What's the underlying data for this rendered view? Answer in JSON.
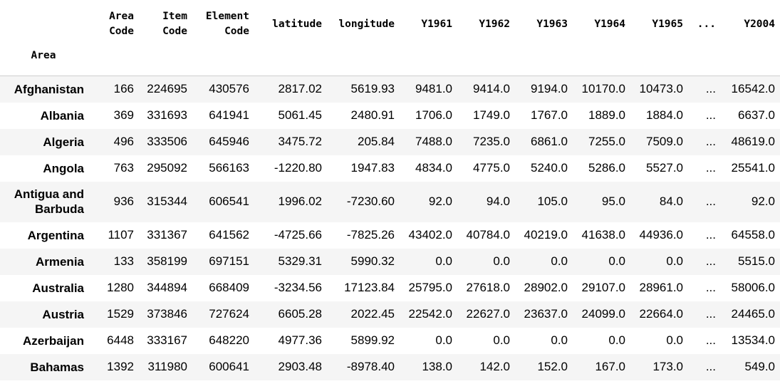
{
  "table": {
    "index_name": "Area",
    "columns": [
      [
        "Area",
        "Code"
      ],
      [
        "Item",
        "Code"
      ],
      [
        "Element",
        "Code"
      ],
      [
        "latitude"
      ],
      [
        "longitude"
      ],
      [
        "Y1961"
      ],
      [
        "Y1962"
      ],
      [
        "Y1963"
      ],
      [
        "Y1964"
      ],
      [
        "Y1965"
      ],
      [
        "..."
      ],
      [
        "Y2004"
      ]
    ],
    "rows": [
      {
        "area": [
          "Afghanistan"
        ],
        "cells": [
          "166",
          "224695",
          "430576",
          "2817.02",
          "5619.93",
          "9481.0",
          "9414.0",
          "9194.0",
          "10170.0",
          "10473.0",
          "...",
          "16542.0"
        ]
      },
      {
        "area": [
          "Albania"
        ],
        "cells": [
          "369",
          "331693",
          "641941",
          "5061.45",
          "2480.91",
          "1706.0",
          "1749.0",
          "1767.0",
          "1889.0",
          "1884.0",
          "...",
          "6637.0"
        ]
      },
      {
        "area": [
          "Algeria"
        ],
        "cells": [
          "496",
          "333506",
          "645946",
          "3475.72",
          "205.84",
          "7488.0",
          "7235.0",
          "6861.0",
          "7255.0",
          "7509.0",
          "...",
          "48619.0"
        ]
      },
      {
        "area": [
          "Angola"
        ],
        "cells": [
          "763",
          "295092",
          "566163",
          "-1220.80",
          "1947.83",
          "4834.0",
          "4775.0",
          "5240.0",
          "5286.0",
          "5527.0",
          "...",
          "25541.0"
        ]
      },
      {
        "area": [
          "Antigua and",
          "Barbuda"
        ],
        "cells": [
          "936",
          "315344",
          "606541",
          "1996.02",
          "-7230.60",
          "92.0",
          "94.0",
          "105.0",
          "95.0",
          "84.0",
          "...",
          "92.0"
        ]
      },
      {
        "area": [
          "Argentina"
        ],
        "cells": [
          "1107",
          "331367",
          "641562",
          "-4725.66",
          "-7825.26",
          "43402.0",
          "40784.0",
          "40219.0",
          "41638.0",
          "44936.0",
          "...",
          "64558.0"
        ]
      },
      {
        "area": [
          "Armenia"
        ],
        "cells": [
          "133",
          "358199",
          "697151",
          "5329.31",
          "5990.32",
          "0.0",
          "0.0",
          "0.0",
          "0.0",
          "0.0",
          "...",
          "5515.0"
        ]
      },
      {
        "area": [
          "Australia"
        ],
        "cells": [
          "1280",
          "344894",
          "668409",
          "-3234.56",
          "17123.84",
          "25795.0",
          "27618.0",
          "28902.0",
          "29107.0",
          "28961.0",
          "...",
          "58006.0"
        ]
      },
      {
        "area": [
          "Austria"
        ],
        "cells": [
          "1529",
          "373846",
          "727624",
          "6605.28",
          "2022.45",
          "22542.0",
          "22627.0",
          "23637.0",
          "24099.0",
          "22664.0",
          "...",
          "24465.0"
        ]
      },
      {
        "area": [
          "Azerbaijan"
        ],
        "cells": [
          "6448",
          "333167",
          "648220",
          "4977.36",
          "5899.92",
          "0.0",
          "0.0",
          "0.0",
          "0.0",
          "0.0",
          "...",
          "13534.0"
        ]
      },
      {
        "area": [
          "Bahamas"
        ],
        "cells": [
          "1392",
          "311980",
          "600641",
          "2903.48",
          "-8978.40",
          "138.0",
          "142.0",
          "152.0",
          "167.0",
          "173.0",
          "...",
          "549.0"
        ]
      }
    ]
  }
}
